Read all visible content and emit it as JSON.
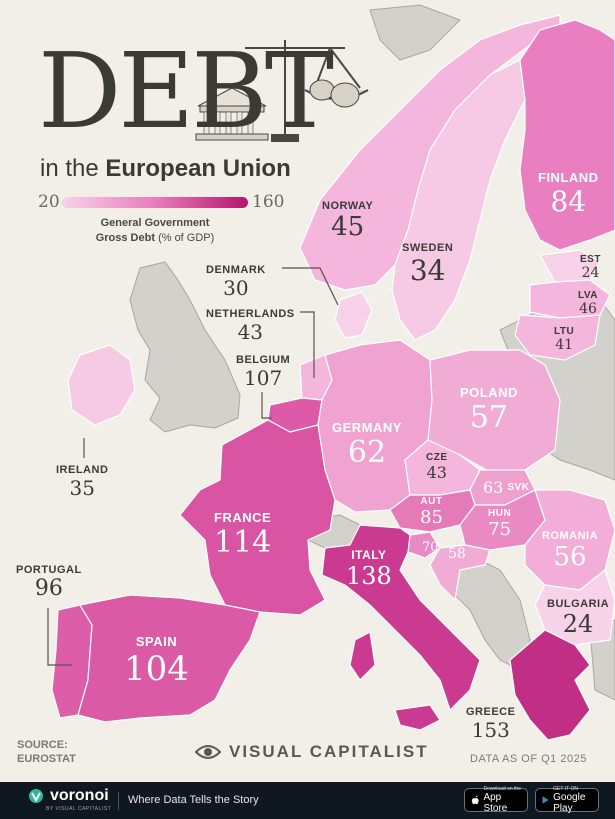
{
  "title": {
    "main": "DEBT",
    "sub_prefix": "in the",
    "sub_bold": "European Union"
  },
  "legend": {
    "min": "20",
    "max": "160",
    "label_bold": "General Government Gross Debt",
    "label_unit": "(% of GDP)"
  },
  "countries": [
    {
      "id": "finland",
      "name": "FINLAND",
      "value": 84
    },
    {
      "id": "norway",
      "name": "NORWAY",
      "value": 45
    },
    {
      "id": "sweden",
      "name": "SWEDEN",
      "value": 34
    },
    {
      "id": "estonia",
      "name": "EST",
      "value": 24
    },
    {
      "id": "latvia",
      "name": "LVA",
      "value": 46
    },
    {
      "id": "lithuania",
      "name": "LTU",
      "value": 41
    },
    {
      "id": "denmark",
      "name": "DENMARK",
      "value": 30
    },
    {
      "id": "netherlands",
      "name": "NETHERLANDS",
      "value": 43
    },
    {
      "id": "belgium",
      "name": "BELGIUM",
      "value": 107
    },
    {
      "id": "poland",
      "name": "POLAND",
      "value": 57
    },
    {
      "id": "germany",
      "name": "GERMANY",
      "value": 62
    },
    {
      "id": "ireland",
      "name": "IRELAND",
      "value": 35
    },
    {
      "id": "czechia",
      "name": "CZE",
      "value": 43
    },
    {
      "id": "slovakia",
      "name": "SVK",
      "value": 63
    },
    {
      "id": "austria",
      "name": "AUT",
      "value": 85
    },
    {
      "id": "hungary",
      "name": "HUN",
      "value": 75
    },
    {
      "id": "france",
      "name": "FRANCE",
      "value": 114
    },
    {
      "id": "slovenia",
      "name": "",
      "value": 70
    },
    {
      "id": "croatia",
      "name": "",
      "value": 58
    },
    {
      "id": "romania",
      "name": "ROMANIA",
      "value": 56
    },
    {
      "id": "portugal",
      "name": "PORTUGAL",
      "value": 96
    },
    {
      "id": "italy",
      "name": "ITALY",
      "value": 138
    },
    {
      "id": "bulgaria",
      "name": "BULGARIA",
      "value": 24
    },
    {
      "id": "spain",
      "name": "SPAIN",
      "value": 104
    },
    {
      "id": "greece",
      "name": "GREECE",
      "value": 153
    }
  ],
  "source": {
    "label": "SOURCE:",
    "value": "EUROSTAT"
  },
  "publisher": "VISUAL CAPITALIST",
  "data_as_of": "DATA AS OF Q1 2025",
  "footer": {
    "brand": "voronoi",
    "brand_sub": "BY VISUAL CAPITALIST",
    "tagline": "Where Data Tells the Story",
    "app_store_small": "Download on the",
    "app_store_big": "App Store",
    "google_play_small": "GET IT ON",
    "google_play_big": "Google Play"
  },
  "colors": {
    "background": "#f1efe8",
    "non_eu_land": "#d3d1cb",
    "scale_low": "#f7d2e8",
    "scale_high": "#b5146c",
    "footer_bg": "#0f1720"
  },
  "icons": [
    "bank-building-icon",
    "balance-scale-icon",
    "money-bag-icon",
    "voronoi-logo-icon",
    "apple-icon",
    "google-play-icon"
  ]
}
